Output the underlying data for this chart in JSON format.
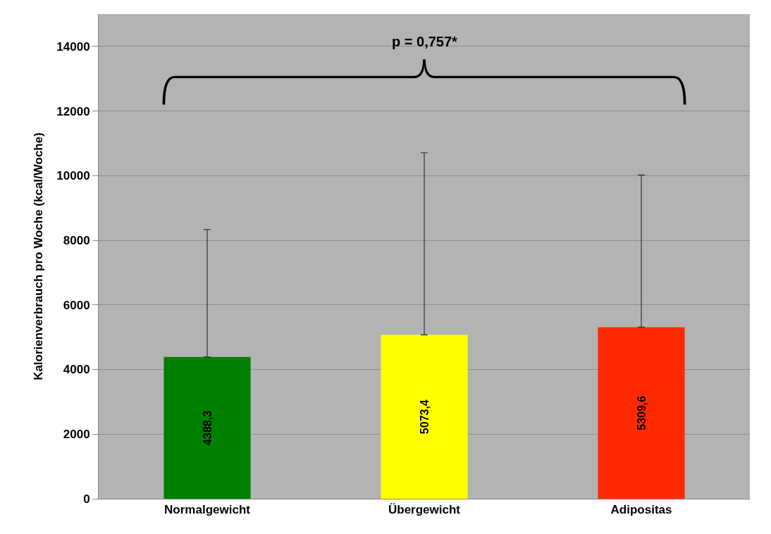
{
  "chart_data": {
    "type": "bar",
    "ylabel": "Kalorienverbrauch pro Woche (kcal/Woche)",
    "categories": [
      "Normalgewicht",
      "Übergewicht",
      "Adipositas"
    ],
    "values": [
      4388.3,
      5073.4,
      5309.6
    ],
    "value_labels": [
      "4388,3",
      "5073,4",
      "5309,6"
    ],
    "colors": [
      "#008000",
      "#ffff00",
      "#ff2a00"
    ],
    "errors": [
      [
        4388.3,
        8330
      ],
      [
        5073.4,
        10710
      ],
      [
        5309.6,
        10020
      ]
    ],
    "ylim": [
      0,
      15000
    ],
    "yticks": [
      0,
      2000,
      4000,
      6000,
      8000,
      10000,
      12000,
      14000
    ],
    "grid": "y",
    "legend": false,
    "annotations": [
      "p = 0,757*"
    ]
  }
}
